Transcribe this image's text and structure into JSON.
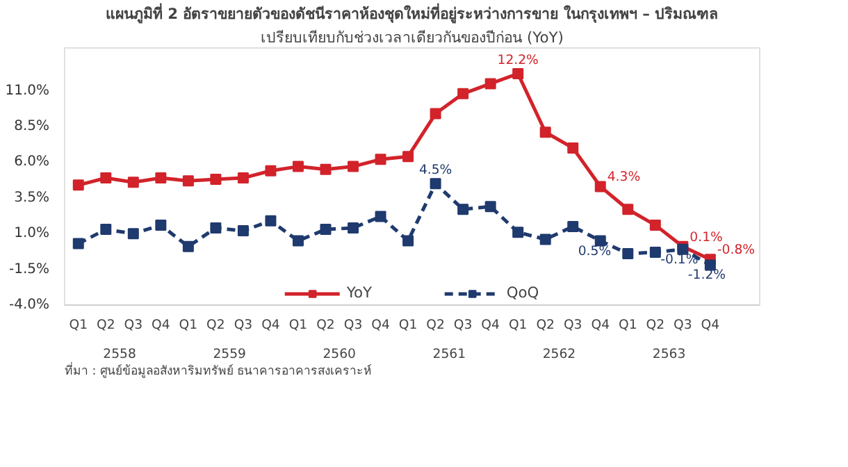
{
  "chart_data": {
    "type": "line",
    "title": "แผนภูมิที่ 2 อัตราขยายตัวของดัชนีราคาห้องชุดใหม่ที่อยู่ระหว่างการขาย ในกรุงเทพฯ – ปริมณฑล",
    "subtitle": "เปรียบเทียบกับช่วงเวลาเดียวกันของปีก่อน (YoY)",
    "categories": [
      "Q1",
      "Q2",
      "Q3",
      "Q4",
      "Q1",
      "Q2",
      "Q3",
      "Q4",
      "Q1",
      "Q2",
      "Q3",
      "Q4",
      "Q1",
      "Q2",
      "Q3",
      "Q4",
      "Q1",
      "Q2",
      "Q3",
      "Q4",
      "Q1",
      "Q2",
      "Q3",
      "Q4"
    ],
    "annotations": [
      "2558",
      "2559",
      "2560",
      "2561",
      "2562",
      "2563",
      "ที่มา : ศูนย์ข้อมูลอสังหาริมทรัพย์ ธนาคารอาคารสงเคราะห์"
    ],
    "series": [
      {
        "name": "YoY",
        "color": "#d2232a",
        "line_style": "solid",
        "values": [
          4.4,
          4.9,
          4.6,
          4.9,
          4.7,
          4.8,
          4.9,
          5.4,
          5.7,
          5.5,
          5.7,
          6.2,
          6.4,
          9.4,
          10.8,
          11.5,
          12.2,
          8.1,
          7.0,
          4.3,
          2.7,
          1.6,
          0.1,
          -0.8
        ],
        "value_labels": [
          null,
          null,
          null,
          null,
          null,
          null,
          null,
          null,
          null,
          null,
          null,
          null,
          null,
          null,
          null,
          null,
          "12.2%",
          null,
          null,
          "4.3%",
          null,
          null,
          "0.1%",
          "-0.8%"
        ]
      },
      {
        "name": "QoQ",
        "color": "#1f3a6e",
        "line_style": "dashed",
        "values": [
          0.3,
          1.3,
          1.0,
          1.6,
          0.1,
          1.4,
          1.2,
          1.9,
          0.5,
          1.3,
          1.4,
          2.2,
          0.5,
          4.5,
          2.7,
          2.9,
          1.1,
          0.6,
          1.5,
          0.5,
          -0.4,
          -0.3,
          -0.1,
          -1.2
        ],
        "value_labels": [
          null,
          null,
          null,
          null,
          null,
          null,
          null,
          null,
          null,
          null,
          null,
          null,
          null,
          "4.5%",
          null,
          null,
          null,
          null,
          null,
          "0.5%",
          null,
          null,
          "-0.1%",
          "-1.2%"
        ]
      }
    ],
    "ylim": [
      -4,
      14
    ],
    "yticks": [
      {
        "value": -4,
        "label": "-4.0%"
      },
      {
        "value": -1.5,
        "label": "-1.5%"
      },
      {
        "value": 1,
        "label": "1.0%"
      },
      {
        "value": 3.5,
        "label": "3.5%"
      },
      {
        "value": 6,
        "label": "6.0%"
      },
      {
        "value": 8.5,
        "label": "8.5%"
      },
      {
        "value": 11,
        "label": "11.0%"
      }
    ],
    "grid": false,
    "legend": "bottom",
    "marker": "square"
  }
}
